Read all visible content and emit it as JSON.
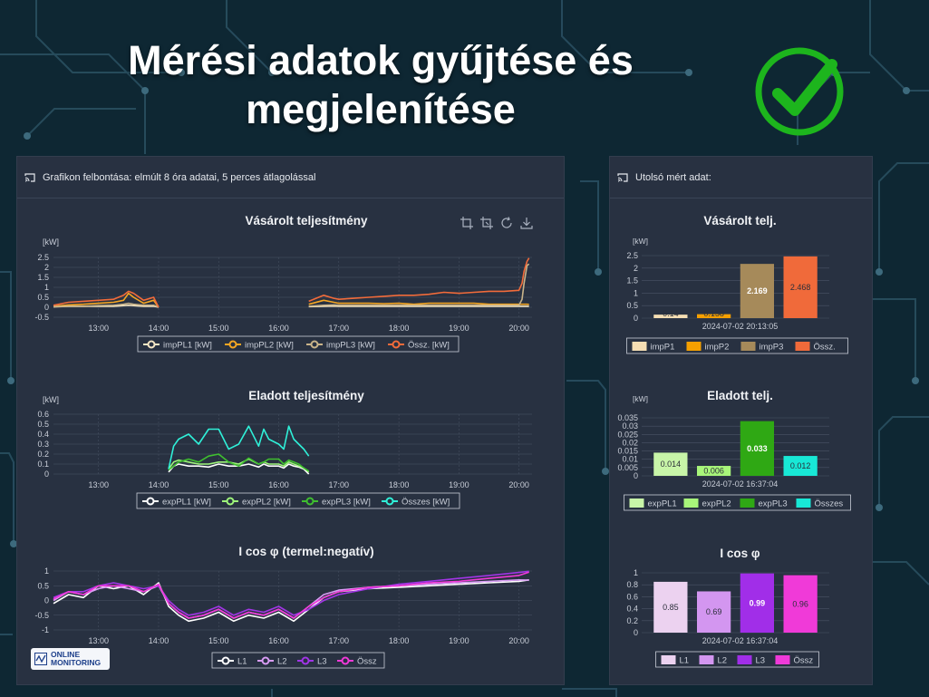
{
  "slide": {
    "title_line1": "Mérési adatok gyűjtése és",
    "title_line2": "megjelenítése"
  },
  "colors": {
    "panel_bg": "#283141",
    "grid": "#4a5466",
    "axis_text": "#c9ced8",
    "title_text": "#f0f2f5",
    "check": "#1db51d"
  },
  "main_panel": {
    "header": "Grafikon felbontása: elmúlt 8 óra adatai, 5 perces átlagolással",
    "toolbar_icons": [
      "zoom-icon",
      "zoom-reset-icon",
      "refresh-icon",
      "download-icon"
    ],
    "logo_line1": "ONLINE",
    "logo_line2": "MONITORING"
  },
  "side_panel": {
    "header": "Utolsó mért adat:"
  },
  "chart_data": [
    {
      "id": "bought",
      "type": "line",
      "title": "Vásárolt teljesítmény",
      "ylabel": "[kW]",
      "ylim": [
        -0.5,
        2.5
      ],
      "yticks": [
        "2.5",
        "2",
        "1.5",
        "1",
        "0.5",
        "0",
        "-0.5"
      ],
      "xticks": [
        "13:00",
        "14:00",
        "15:00",
        "16:00",
        "17:00",
        "18:00",
        "19:00",
        "20:00"
      ],
      "x": [
        "12:15",
        "12:30",
        "12:45",
        "13:00",
        "13:15",
        "13:25",
        "13:30",
        "13:35",
        "13:45",
        "13:55",
        "14:00",
        "16:30",
        "16:45",
        "16:55",
        "17:00",
        "17:15",
        "17:30",
        "17:45",
        "18:00",
        "18:15",
        "18:30",
        "18:45",
        "19:00",
        "19:15",
        "19:30",
        "19:45",
        "20:00",
        "20:03",
        "20:05",
        "20:08",
        "20:10"
      ],
      "series": [
        {
          "name": "impPL1 [kW]",
          "color": "#f5e6c4",
          "values": [
            0.02,
            0.05,
            0.05,
            0.05,
            0.05,
            0.08,
            0.1,
            0.08,
            0.05,
            0.05,
            0.0,
            0.03,
            0.05,
            0.06,
            0.05,
            0.05,
            0.05,
            0.05,
            0.05,
            0.05,
            0.05,
            0.05,
            0.05,
            0.05,
            0.05,
            0.05,
            0.05,
            0.05,
            0.05,
            0.05,
            0.05
          ]
        },
        {
          "name": "impPL2 [kW]",
          "color": "#f5a623",
          "values": [
            0.05,
            0.12,
            0.15,
            0.2,
            0.25,
            0.35,
            0.7,
            0.5,
            0.2,
            0.35,
            0.0,
            0.15,
            0.35,
            0.25,
            0.2,
            0.2,
            0.2,
            0.18,
            0.2,
            0.15,
            0.2,
            0.2,
            0.2,
            0.2,
            0.15,
            0.15,
            0.15,
            0.15,
            0.15,
            0.15,
            0.14
          ]
        },
        {
          "name": "impPL3 [kW]",
          "color": "#c9b48a",
          "values": [
            0.03,
            0.05,
            0.05,
            0.08,
            0.1,
            0.15,
            0.2,
            0.15,
            0.1,
            0.1,
            0.0,
            0.05,
            0.1,
            0.12,
            0.1,
            0.1,
            0.1,
            0.1,
            0.1,
            0.1,
            0.1,
            0.1,
            0.1,
            0.1,
            0.1,
            0.1,
            0.1,
            0.4,
            1.2,
            2.1,
            2.17
          ]
        },
        {
          "name": "Össz. [kW]",
          "color": "#f26b3a",
          "values": [
            0.1,
            0.25,
            0.3,
            0.35,
            0.4,
            0.6,
            0.8,
            0.7,
            0.35,
            0.5,
            0.0,
            0.3,
            0.6,
            0.45,
            0.4,
            0.45,
            0.5,
            0.55,
            0.6,
            0.6,
            0.65,
            0.75,
            0.7,
            0.75,
            0.8,
            0.8,
            0.85,
            1.2,
            1.8,
            2.3,
            2.47
          ]
        }
      ],
      "legend_position": "bottom"
    },
    {
      "id": "sold",
      "type": "line",
      "title": "Eladott teljesítmény",
      "ylabel": "[kW]",
      "ylim": [
        0,
        0.6
      ],
      "yticks": [
        "0.6",
        "0.5",
        "0.4",
        "0.3",
        "0.2",
        "0.1",
        "0"
      ],
      "xticks": [
        "13:00",
        "14:00",
        "15:00",
        "16:00",
        "17:00",
        "18:00",
        "19:00",
        "20:00"
      ],
      "x": [
        "14:10",
        "14:15",
        "14:20",
        "14:30",
        "14:40",
        "14:50",
        "15:00",
        "15:10",
        "15:20",
        "15:30",
        "15:40",
        "15:45",
        "15:50",
        "16:00",
        "16:05",
        "16:10",
        "16:15",
        "16:20",
        "16:25",
        "16:30"
      ],
      "series": [
        {
          "name": "expPL1 [kW]",
          "color": "#ffffff",
          "values": [
            0.02,
            0.08,
            0.1,
            0.08,
            0.08,
            0.07,
            0.1,
            0.08,
            0.08,
            0.1,
            0.07,
            0.1,
            0.08,
            0.08,
            0.06,
            0.1,
            0.08,
            0.07,
            0.05,
            0.0
          ]
        },
        {
          "name": "expPL2 [kW]",
          "color": "#9ef57a",
          "values": [
            0.05,
            0.12,
            0.14,
            0.12,
            0.1,
            0.1,
            0.12,
            0.12,
            0.1,
            0.15,
            0.1,
            0.12,
            0.1,
            0.1,
            0.08,
            0.12,
            0.1,
            0.08,
            0.06,
            0.02
          ]
        },
        {
          "name": "expPL3 [kW]",
          "color": "#3fbf2f",
          "values": [
            0.04,
            0.08,
            0.12,
            0.15,
            0.12,
            0.18,
            0.2,
            0.12,
            0.08,
            0.16,
            0.1,
            0.12,
            0.15,
            0.15,
            0.1,
            0.14,
            0.12,
            0.1,
            0.06,
            0.03
          ]
        },
        {
          "name": "Összes [kW]",
          "color": "#2ff0d8",
          "values": [
            0.05,
            0.28,
            0.35,
            0.4,
            0.3,
            0.45,
            0.45,
            0.25,
            0.3,
            0.48,
            0.28,
            0.45,
            0.35,
            0.3,
            0.25,
            0.48,
            0.35,
            0.3,
            0.25,
            0.18
          ]
        }
      ],
      "legend_position": "bottom"
    },
    {
      "id": "icos",
      "type": "line",
      "title": "I cos φ (termel:negatív)",
      "ylabel": "",
      "ylim": [
        -1,
        1
      ],
      "yticks": [
        "1",
        "0.5",
        "0",
        "-0.5",
        "-1"
      ],
      "xticks": [
        "13:00",
        "14:00",
        "15:00",
        "16:00",
        "17:00",
        "18:00",
        "19:00",
        "20:00"
      ],
      "x": [
        "12:15",
        "12:30",
        "12:45",
        "13:00",
        "13:15",
        "13:30",
        "13:45",
        "14:00",
        "14:10",
        "14:20",
        "14:30",
        "14:45",
        "15:00",
        "15:15",
        "15:30",
        "15:45",
        "16:00",
        "16:15",
        "16:30",
        "16:45",
        "17:00",
        "17:30",
        "18:00",
        "18:30",
        "19:00",
        "19:30",
        "20:00",
        "20:10"
      ],
      "series": [
        {
          "name": "L1",
          "color": "#ffffff",
          "values": [
            -0.1,
            0.2,
            0.1,
            0.5,
            0.4,
            0.5,
            0.2,
            0.6,
            -0.2,
            -0.5,
            -0.7,
            -0.6,
            -0.4,
            -0.7,
            -0.5,
            -0.6,
            -0.4,
            -0.7,
            -0.3,
            0.1,
            0.3,
            0.4,
            0.45,
            0.5,
            0.55,
            0.6,
            0.65,
            0.7
          ]
        },
        {
          "name": "L2",
          "color": "#d99cf5",
          "values": [
            0.0,
            0.3,
            0.2,
            0.4,
            0.5,
            0.4,
            0.3,
            0.5,
            -0.1,
            -0.4,
            -0.6,
            -0.5,
            -0.3,
            -0.6,
            -0.4,
            -0.5,
            -0.3,
            -0.6,
            -0.2,
            0.2,
            0.35,
            0.45,
            0.5,
            0.55,
            0.6,
            0.65,
            0.7,
            0.69
          ]
        },
        {
          "name": "L3",
          "color": "#a235e6",
          "values": [
            0.1,
            0.3,
            0.3,
            0.5,
            0.6,
            0.5,
            0.4,
            0.5,
            0.0,
            -0.3,
            -0.5,
            -0.4,
            -0.2,
            -0.5,
            -0.3,
            -0.4,
            -0.2,
            -0.5,
            -0.3,
            0.0,
            0.2,
            0.4,
            0.55,
            0.65,
            0.75,
            0.85,
            0.95,
            0.99
          ]
        },
        {
          "name": "Össz",
          "color": "#f03ad8",
          "values": [
            0.05,
            0.3,
            0.2,
            0.5,
            0.5,
            0.5,
            0.3,
            0.55,
            -0.1,
            -0.4,
            -0.6,
            -0.5,
            -0.3,
            -0.6,
            -0.4,
            -0.5,
            -0.3,
            -0.6,
            -0.2,
            0.1,
            0.3,
            0.45,
            0.5,
            0.6,
            0.65,
            0.75,
            0.85,
            0.96
          ]
        }
      ],
      "legend_position": "bottom"
    },
    {
      "id": "bought_last",
      "type": "bar",
      "title": "Vásárolt telj.",
      "ylabel": "[kW]",
      "ylim": [
        0,
        2.5
      ],
      "yticks": [
        "2.5",
        "2",
        "1.5",
        "1",
        "0.5",
        "0"
      ],
      "xlabel": "2024-07-02 20:13:05",
      "categories": [
        "impP1",
        "impP2",
        "impP3",
        "Össz."
      ],
      "values": [
        0.14,
        0.158,
        2.169,
        2.468
      ],
      "labels": [
        "0.14",
        "0.158",
        "2.169",
        "2.468"
      ],
      "colors": [
        "#f5deb3",
        "#f5a000",
        "#a68a5a",
        "#f06a3a"
      ],
      "legend_position": "bottom"
    },
    {
      "id": "sold_last",
      "type": "bar",
      "title": "Eladott telj.",
      "ylabel": "[kW]",
      "ylim": [
        0,
        0.035
      ],
      "yticks": [
        "0.035",
        "0.03",
        "0.025",
        "0.02",
        "0.015",
        "0.01",
        "0.005",
        "0"
      ],
      "xlabel": "2024-07-02 16:37:04",
      "categories": [
        "expPL1",
        "expPL2",
        "expPL3",
        "Összes"
      ],
      "values": [
        0.014,
        0.006,
        0.033,
        0.012
      ],
      "labels": [
        "0.014",
        "0.006",
        "0.033",
        "0.012"
      ],
      "colors": [
        "#c8f5a8",
        "#a8f57a",
        "#2fa814",
        "#18e8d6"
      ],
      "legend_position": "bottom"
    },
    {
      "id": "icos_last",
      "type": "bar",
      "title": "I cos φ",
      "ylabel": "",
      "ylim": [
        0,
        1
      ],
      "yticks": [
        "1",
        "0.8",
        "0.6",
        "0.4",
        "0.2",
        "0"
      ],
      "xlabel": "2024-07-02 16:37:04",
      "categories": [
        "L1",
        "L2",
        "L3",
        "Össz"
      ],
      "values": [
        0.85,
        0.69,
        0.99,
        0.96
      ],
      "labels": [
        "0.85",
        "0.69",
        "0.99",
        "0.96"
      ],
      "colors": [
        "#ecd2f0",
        "#d396f0",
        "#a12ee8",
        "#f03ad8"
      ],
      "legend_position": "bottom"
    }
  ]
}
